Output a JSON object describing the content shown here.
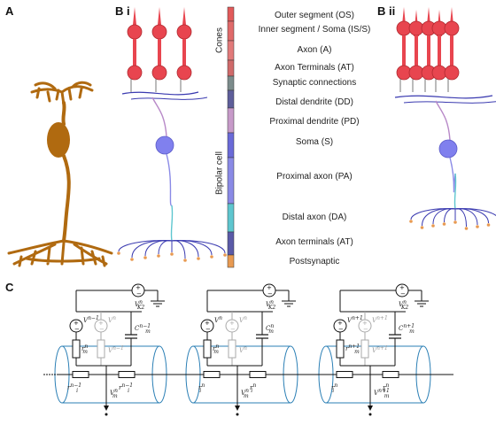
{
  "panels": {
    "a": "A",
    "bi": "B i",
    "bii": "B ii",
    "c": "C"
  },
  "groups": {
    "cones": "Cones",
    "bipolar": "Bipolar cell"
  },
  "segments": [
    {
      "label": "Outer segment (OS)",
      "color": "#e25a5a"
    },
    {
      "label": "Inner segment / Soma (IS/S)",
      "color": "#e06a6a"
    },
    {
      "label": "Axon (A)",
      "color": "#e27a7a"
    },
    {
      "label": "Axon Terminals (AT)",
      "color": "#d06a6a"
    },
    {
      "label": "Synaptic connections",
      "color": "#7c8c8c"
    },
    {
      "label": "Distal dendrite (DD)",
      "color": "#5e5e9a"
    },
    {
      "label": "Proximal dendrite (PD)",
      "color": "#c79ac9"
    },
    {
      "label": "Soma (S)",
      "color": "#6a6ad8"
    },
    {
      "label": "Proximal axon (PA)",
      "color": "#8a8ae6"
    },
    {
      "label": "Distal axon (DA)",
      "color": "#5ec6cf"
    },
    {
      "label": "Axon terminals (AT)",
      "color": "#5a5aa8"
    },
    {
      "label": "Postsynaptic",
      "color": "#e89a52"
    }
  ],
  "colors": {
    "cone": "#e8454f",
    "bipolar": "#3a3ab0",
    "soma": "#8080ee",
    "reconstruction": "#b06a10",
    "membrane": "#2b7fb5",
    "wire": "#111111"
  },
  "circuit": {
    "units": [
      {
        "v_top": "V",
        "v_top_sup": "n",
        "v_top_sub": "K2",
        "v_top_sup2": "−1",
        "e_left": "V",
        "e_left_sup": "n−1",
        "e_mid": "V",
        "e_mid_sup": "n",
        "e_mid_sub": "",
        "cap": "C",
        "cap_sup": "n−1",
        "cap_sub": "m",
        "r_left": "r",
        "r_left_sup": "n",
        "r_left_sub": "m",
        "r_mid": "V",
        "r_mid_sup": "n−1",
        "r_mid_sub": "",
        "r_i_left": "r",
        "r_i_left_sup": "n−1",
        "r_i_left_sub": "i",
        "r_i_right": "r",
        "r_i_right_sup": "n−1",
        "r_i_right_sub": "i",
        "v_m": "V",
        "v_m_sup": "n",
        "v_m_sub": "m"
      },
      {
        "v_top": "V",
        "v_top_sup": "n",
        "v_top_sub": "K2",
        "v_top_sup2": "",
        "e_left": "V",
        "e_left_sup": "n",
        "e_mid": "V",
        "e_mid_sup": "n",
        "e_mid_sub": "",
        "cap": "C",
        "cap_sup": "n",
        "cap_sub": "m",
        "r_left": "r",
        "r_left_sup": "n",
        "r_left_sub": "m",
        "r_mid": "V",
        "r_mid_sup": "n",
        "r_mid_sub": "",
        "r_i_left": "r",
        "r_i_left_sup": "n",
        "r_i_left_sub": "i",
        "r_i_right": "r",
        "r_i_right_sup": "n",
        "r_i_right_sub": "i",
        "v_m": "V",
        "v_m_sup": "n",
        "v_m_sub": "m"
      },
      {
        "v_top": "V",
        "v_top_sup": "n",
        "v_top_sub": "K2",
        "v_top_sup2": "+1",
        "e_left": "V",
        "e_left_sup": "n+1",
        "e_mid": "V",
        "e_mid_sup": "n+1",
        "e_mid_sub": "",
        "cap": "C",
        "cap_sup": "n+1",
        "cap_sub": "m",
        "r_left": "r",
        "r_left_sup": "n+1",
        "r_left_sub": "m",
        "r_mid": "V",
        "r_mid_sup": "n+1",
        "r_mid_sub": "",
        "r_i_left": "r",
        "r_i_left_sup": "n",
        "r_i_left_sub": "i",
        "r_i_right": "r",
        "r_i_right_sup": "n",
        "r_i_right_sub": "i",
        "v_m": "V",
        "v_m_sup": "n+1",
        "v_m_sub": "m"
      }
    ]
  }
}
